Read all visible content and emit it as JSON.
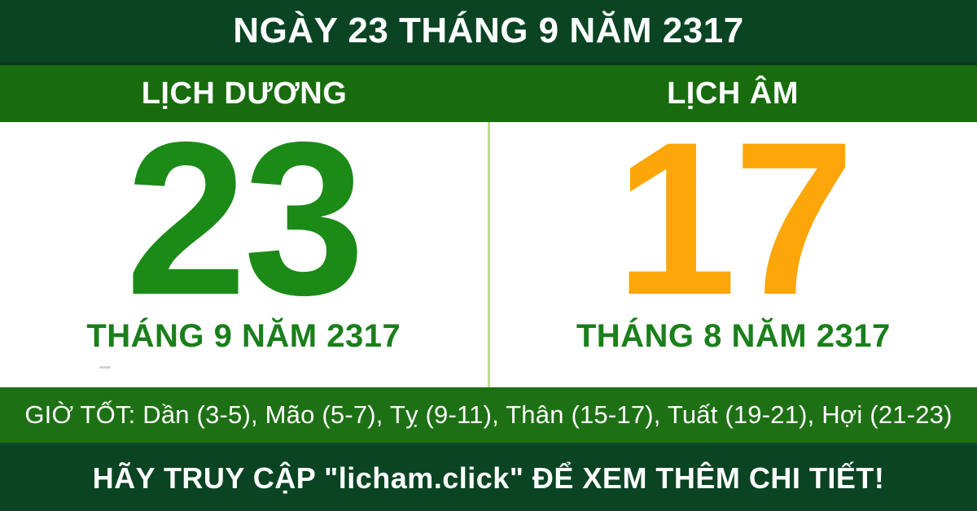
{
  "title": "NGÀY 23 THÁNG 9 NĂM 2317",
  "columns": {
    "solar": {
      "header": "LỊCH DƯƠNG",
      "day": "23",
      "month_year": "THÁNG 9 NĂM 2317"
    },
    "lunar": {
      "header": "LỊCH ÂM",
      "day": "17",
      "month_year": "THÁNG 8 NĂM 2317"
    }
  },
  "good_hours": "GIỜ TỐT: Dần (3-5), Mão (5-7), Tỵ (9-11), Thân (15-17), Tuất (19-21), Hợi (21-23)",
  "footer": "HÃY TRUY CẬP \"licham.click\" ĐỂ XEM THÊM CHI TIẾT!",
  "colors": {
    "dark_green": "#0A4423",
    "band_green": "#186C0E",
    "hours_green": "#1E7014",
    "day_green": "#1B8A17",
    "month_green": "#1B7F1B",
    "lunar_orange": "#FDA609",
    "divider_green": "#BCDF90",
    "text_white": "#FFFFFF"
  }
}
